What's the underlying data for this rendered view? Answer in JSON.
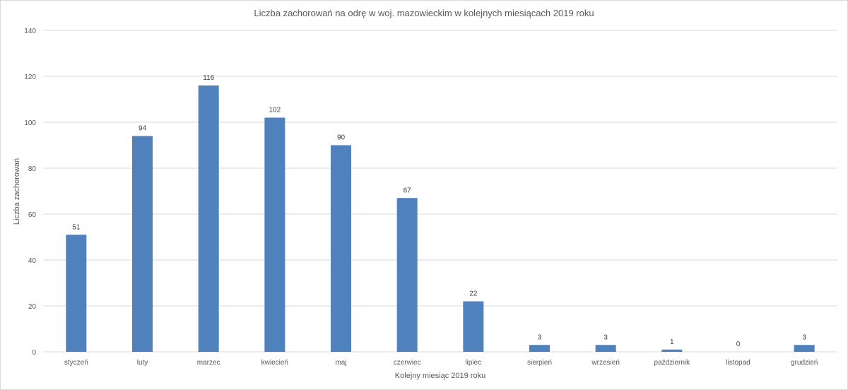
{
  "chart_data": {
    "type": "bar",
    "title": "Liczba zachorowań na odrę w woj. mazowieckim w kolejnych miesiącach 2019 roku",
    "xlabel": "Kolejny miesiąc 2019 roku",
    "ylabel": "Liczba zachorowań",
    "categories": [
      "styczeń",
      "luty",
      "marzec",
      "kwiecień",
      "maj",
      "czerwiec",
      "lipiec",
      "sierpień",
      "wrzesień",
      "październik",
      "listopad",
      "grudzień"
    ],
    "values": [
      51,
      94,
      116,
      102,
      90,
      67,
      22,
      3,
      3,
      1,
      0,
      3
    ],
    "ylim": [
      0,
      140
    ],
    "yticks": [
      "0",
      "20",
      "40",
      "60",
      "80",
      "100",
      "120",
      "140"
    ],
    "grid": true,
    "legend": "none",
    "bar_color": "#4f81bd"
  }
}
